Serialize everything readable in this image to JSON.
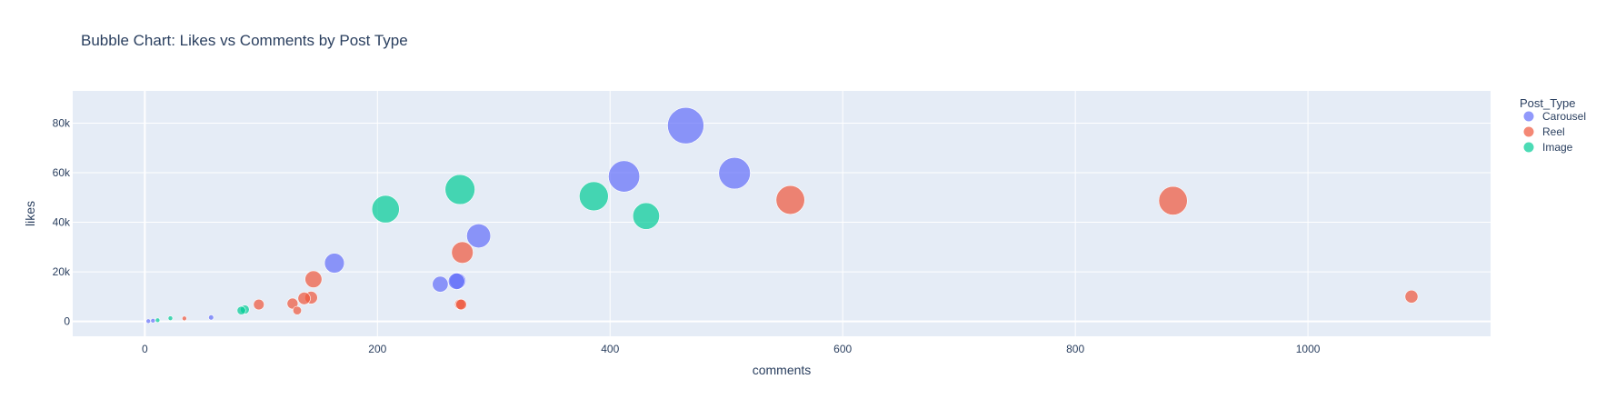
{
  "chart_data": {
    "type": "scatter",
    "title": "Bubble Chart: Likes vs Comments by Post Type",
    "xlabel": "comments",
    "ylabel": "likes",
    "xlim": [
      -62,
      1157
    ],
    "ylim": [
      -6000,
      93000
    ],
    "x_ticks": [
      0,
      200,
      400,
      600,
      800,
      1000
    ],
    "x_tick_labels": [
      "0",
      "200",
      "400",
      "600",
      "800",
      "1000"
    ],
    "y_ticks": [
      0,
      20000,
      40000,
      60000,
      80000
    ],
    "y_tick_labels": [
      "0",
      "20k",
      "40k",
      "60k",
      "80k"
    ],
    "grid": true,
    "legend": {
      "title": "Post_Type",
      "placement": "right"
    },
    "size_encoding": "likes",
    "series": [
      {
        "name": "Carousel",
        "color": "#636efa",
        "points": [
          {
            "x": 465,
            "y": 79000
          },
          {
            "x": 412,
            "y": 58500
          },
          {
            "x": 507,
            "y": 59800
          },
          {
            "x": 287,
            "y": 34500
          },
          {
            "x": 163,
            "y": 23500
          },
          {
            "x": 254,
            "y": 15000
          },
          {
            "x": 268,
            "y": 16200
          },
          {
            "x": 269,
            "y": 16300
          },
          {
            "x": 57,
            "y": 1600
          },
          {
            "x": 7,
            "y": 300
          },
          {
            "x": 3,
            "y": 100
          }
        ]
      },
      {
        "name": "Reel",
        "color": "#ef553b",
        "points": [
          {
            "x": 884,
            "y": 48700
          },
          {
            "x": 555,
            "y": 49000
          },
          {
            "x": 273,
            "y": 27800
          },
          {
            "x": 145,
            "y": 17000
          },
          {
            "x": 143,
            "y": 9600
          },
          {
            "x": 137,
            "y": 9300
          },
          {
            "x": 127,
            "y": 7200
          },
          {
            "x": 98,
            "y": 6800
          },
          {
            "x": 271,
            "y": 6900
          },
          {
            "x": 272,
            "y": 6800
          },
          {
            "x": 131,
            "y": 4400
          },
          {
            "x": 1089,
            "y": 10000
          },
          {
            "x": 34,
            "y": 1200
          }
        ]
      },
      {
        "name": "Image",
        "color": "#00cc96",
        "points": [
          {
            "x": 271,
            "y": 53200
          },
          {
            "x": 386,
            "y": 50500
          },
          {
            "x": 207,
            "y": 45300
          },
          {
            "x": 431,
            "y": 42500
          },
          {
            "x": 86,
            "y": 4800
          },
          {
            "x": 83,
            "y": 4400
          },
          {
            "x": 22,
            "y": 1300
          },
          {
            "x": 11,
            "y": 500
          }
        ]
      }
    ]
  }
}
